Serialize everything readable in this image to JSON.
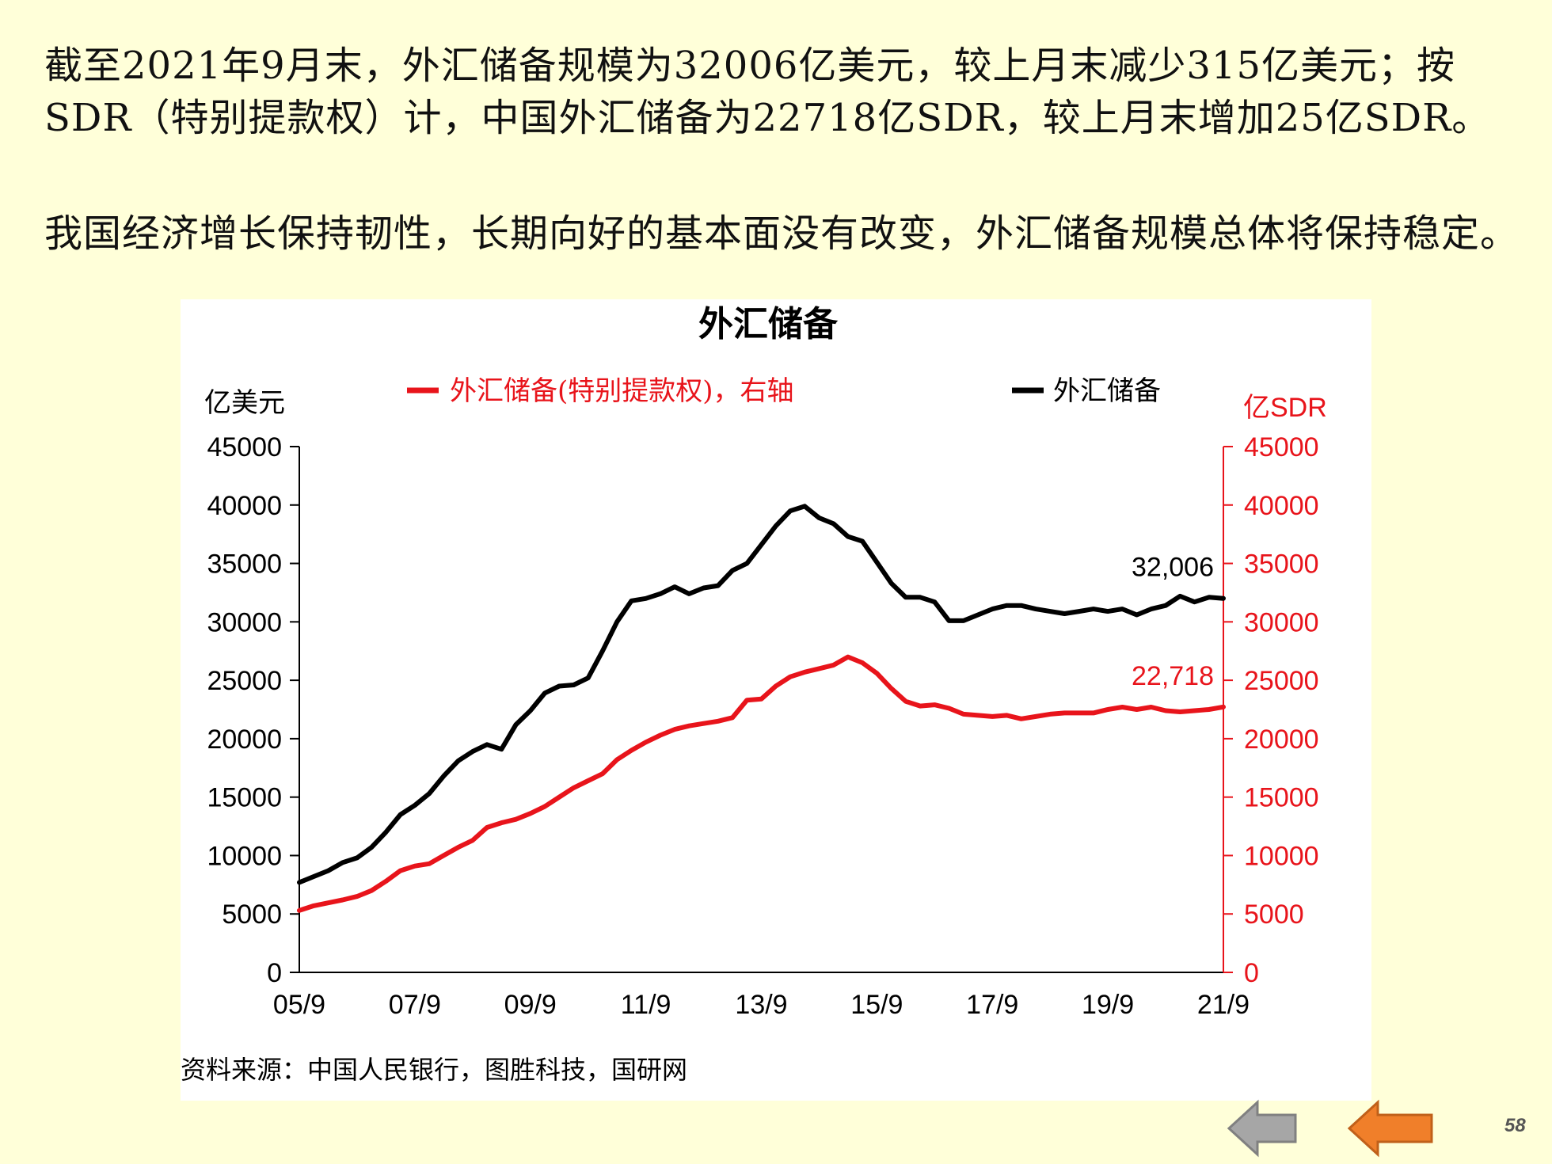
{
  "text": {
    "paragraph1": "截至2021年9月末，外汇储备规模为32006亿美元，较上月末减少315亿美元；按SDR（特别提款权）计，中国外汇储备为22718亿SDR，较上月末增加25亿SDR。",
    "paragraph2": "我国经济增长保持韧性，长期向好的基本面没有改变，外汇储备规模总体将保持稳定。"
  },
  "chart_data": {
    "type": "line",
    "title": "外汇储备",
    "left_unit": "亿美元",
    "right_unit": "亿SDR",
    "source": "资料来源：中国人民银行，图胜科技，国研网",
    "x_tick_labels": [
      "05/9",
      "07/9",
      "09/9",
      "11/9",
      "13/9",
      "15/9",
      "17/9",
      "19/9",
      "21/9"
    ],
    "y_ticks": [
      0,
      5000,
      10000,
      15000,
      20000,
      25000,
      30000,
      35000,
      40000,
      45000
    ],
    "ylim": [
      0,
      45000
    ],
    "y2lim": [
      0,
      45000
    ],
    "legend_placement": "top",
    "grid": false,
    "series": [
      {
        "name": "外汇储备(特别提款权)，右轴",
        "axis": "right",
        "color": "#E8141B",
        "end_label": "22,718",
        "points": [
          [
            "2005-09",
            5300
          ],
          [
            "2005-12",
            5700
          ],
          [
            "2006-03",
            5950
          ],
          [
            "2006-06",
            6200
          ],
          [
            "2006-09",
            6500
          ],
          [
            "2006-12",
            7000
          ],
          [
            "2007-03",
            7800
          ],
          [
            "2007-06",
            8700
          ],
          [
            "2007-09",
            9100
          ],
          [
            "2007-12",
            9300
          ],
          [
            "2008-03",
            10000
          ],
          [
            "2008-06",
            10700
          ],
          [
            "2008-09",
            11300
          ],
          [
            "2008-12",
            12400
          ],
          [
            "2009-03",
            12800
          ],
          [
            "2009-06",
            13100
          ],
          [
            "2009-09",
            13600
          ],
          [
            "2009-12",
            14200
          ],
          [
            "2010-03",
            15000
          ],
          [
            "2010-06",
            15800
          ],
          [
            "2010-09",
            16400
          ],
          [
            "2010-12",
            17000
          ],
          [
            "2011-03",
            18200
          ],
          [
            "2011-06",
            19000
          ],
          [
            "2011-09",
            19700
          ],
          [
            "2011-12",
            20300
          ],
          [
            "2012-03",
            20800
          ],
          [
            "2012-06",
            21100
          ],
          [
            "2012-09",
            21300
          ],
          [
            "2012-12",
            21500
          ],
          [
            "2013-03",
            21800
          ],
          [
            "2013-06",
            23300
          ],
          [
            "2013-09",
            23400
          ],
          [
            "2013-12",
            24500
          ],
          [
            "2014-03",
            25300
          ],
          [
            "2014-06",
            25700
          ],
          [
            "2014-09",
            26000
          ],
          [
            "2014-12",
            26300
          ],
          [
            "2015-03",
            27000
          ],
          [
            "2015-06",
            26500
          ],
          [
            "2015-09",
            25600
          ],
          [
            "2015-12",
            24300
          ],
          [
            "2016-03",
            23200
          ],
          [
            "2016-06",
            22800
          ],
          [
            "2016-09",
            22900
          ],
          [
            "2016-12",
            22600
          ],
          [
            "2017-03",
            22100
          ],
          [
            "2017-06",
            22000
          ],
          [
            "2017-09",
            21900
          ],
          [
            "2017-12",
            22000
          ],
          [
            "2018-03",
            21700
          ],
          [
            "2018-06",
            21900
          ],
          [
            "2018-09",
            22100
          ],
          [
            "2018-12",
            22200
          ],
          [
            "2019-03",
            22200
          ],
          [
            "2019-06",
            22200
          ],
          [
            "2019-09",
            22500
          ],
          [
            "2019-12",
            22700
          ],
          [
            "2020-03",
            22500
          ],
          [
            "2020-06",
            22700
          ],
          [
            "2020-09",
            22400
          ],
          [
            "2020-12",
            22300
          ],
          [
            "2021-03",
            22400
          ],
          [
            "2021-06",
            22500
          ],
          [
            "2021-09",
            22718
          ]
        ]
      },
      {
        "name": "外汇储备",
        "axis": "left",
        "color": "#000000",
        "end_label": "32,006",
        "points": [
          [
            "2005-09",
            7700
          ],
          [
            "2005-12",
            8200
          ],
          [
            "2006-03",
            8700
          ],
          [
            "2006-06",
            9400
          ],
          [
            "2006-09",
            9800
          ],
          [
            "2006-12",
            10700
          ],
          [
            "2007-03",
            12000
          ],
          [
            "2007-06",
            13500
          ],
          [
            "2007-09",
            14300
          ],
          [
            "2007-12",
            15300
          ],
          [
            "2008-03",
            16800
          ],
          [
            "2008-06",
            18100
          ],
          [
            "2008-09",
            18900
          ],
          [
            "2008-12",
            19500
          ],
          [
            "2009-03",
            19100
          ],
          [
            "2009-06",
            21200
          ],
          [
            "2009-09",
            22400
          ],
          [
            "2009-12",
            23900
          ],
          [
            "2010-03",
            24500
          ],
          [
            "2010-06",
            24600
          ],
          [
            "2010-09",
            25200
          ],
          [
            "2010-12",
            27500
          ],
          [
            "2011-03",
            30000
          ],
          [
            "2011-06",
            31800
          ],
          [
            "2011-09",
            32000
          ],
          [
            "2011-12",
            32400
          ],
          [
            "2012-03",
            33000
          ],
          [
            "2012-06",
            32400
          ],
          [
            "2012-09",
            32900
          ],
          [
            "2012-12",
            33100
          ],
          [
            "2013-03",
            34400
          ],
          [
            "2013-06",
            35000
          ],
          [
            "2013-09",
            36600
          ],
          [
            "2013-12",
            38200
          ],
          [
            "2014-03",
            39500
          ],
          [
            "2014-06",
            39900
          ],
          [
            "2014-09",
            38900
          ],
          [
            "2014-12",
            38400
          ],
          [
            "2015-03",
            37300
          ],
          [
            "2015-06",
            36900
          ],
          [
            "2015-09",
            35100
          ],
          [
            "2015-12",
            33300
          ],
          [
            "2016-03",
            32100
          ],
          [
            "2016-06",
            32100
          ],
          [
            "2016-09",
            31700
          ],
          [
            "2016-12",
            30100
          ],
          [
            "2017-03",
            30100
          ],
          [
            "2017-06",
            30600
          ],
          [
            "2017-09",
            31100
          ],
          [
            "2017-12",
            31400
          ],
          [
            "2018-03",
            31400
          ],
          [
            "2018-06",
            31100
          ],
          [
            "2018-09",
            30900
          ],
          [
            "2018-12",
            30700
          ],
          [
            "2019-03",
            30900
          ],
          [
            "2019-06",
            31100
          ],
          [
            "2019-09",
            30900
          ],
          [
            "2019-12",
            31100
          ],
          [
            "2020-03",
            30600
          ],
          [
            "2020-06",
            31100
          ],
          [
            "2020-09",
            31400
          ],
          [
            "2020-12",
            32200
          ],
          [
            "2021-03",
            31700
          ],
          [
            "2021-06",
            32100
          ],
          [
            "2021-09",
            32006
          ]
        ]
      }
    ]
  },
  "nav": {
    "back_icon": "grey-arrow-left-icon",
    "back_color": "#A6A6A6",
    "forward_icon": "orange-arrow-left-icon",
    "forward_color": "#F07F2A"
  },
  "page": {
    "number": "58"
  }
}
